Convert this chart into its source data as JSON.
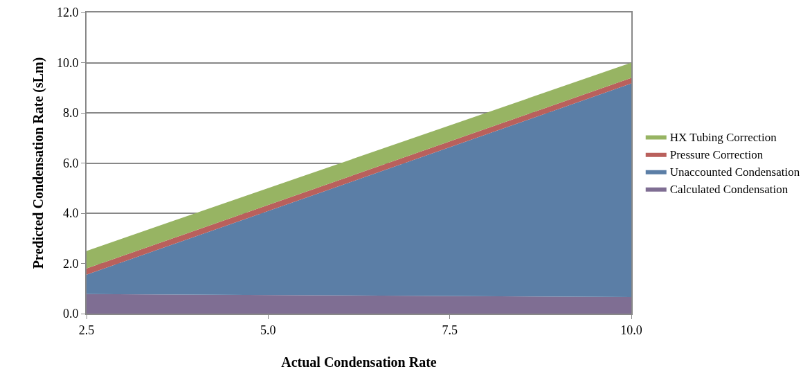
{
  "chart_data": {
    "type": "area",
    "stacked": true,
    "xlabel": "Actual Condensation Rate",
    "ylabel": "Predicted Condensation Rate (sLm)",
    "x": [
      2.5,
      10.0
    ],
    "series": [
      {
        "name": "Calculated Condensation",
        "color": "#7f6e93",
        "values": [
          0.78,
          0.66
        ]
      },
      {
        "name": "Unaccounted Condensation",
        "color": "#5b7ea6",
        "values": [
          0.77,
          8.51
        ]
      },
      {
        "name": "Pressure Correction",
        "color": "#b9605c",
        "values": [
          0.25,
          0.22
        ]
      },
      {
        "name": "HX Tubing Correction",
        "color": "#97b463",
        "values": [
          0.7,
          0.61
        ]
      }
    ],
    "xlim": [
      2.5,
      10.0
    ],
    "xticks": [
      {
        "value": 2.5,
        "label": "2.5"
      },
      {
        "value": 5,
        "label": "5.0"
      },
      {
        "value": 7.5,
        "label": "7.5"
      },
      {
        "value": 10,
        "label": "10.0"
      }
    ],
    "ylim": [
      0,
      12
    ],
    "yticks": [
      {
        "value": 0,
        "label": "0.0"
      },
      {
        "value": 2,
        "label": "2.0"
      },
      {
        "value": 4,
        "label": "4.0"
      },
      {
        "value": 6,
        "label": "6.0"
      },
      {
        "value": 8,
        "label": "8.0"
      },
      {
        "value": 10,
        "label": "10.0"
      },
      {
        "value": 12,
        "label": "12.0"
      }
    ],
    "grid": "y",
    "legend": "right"
  }
}
